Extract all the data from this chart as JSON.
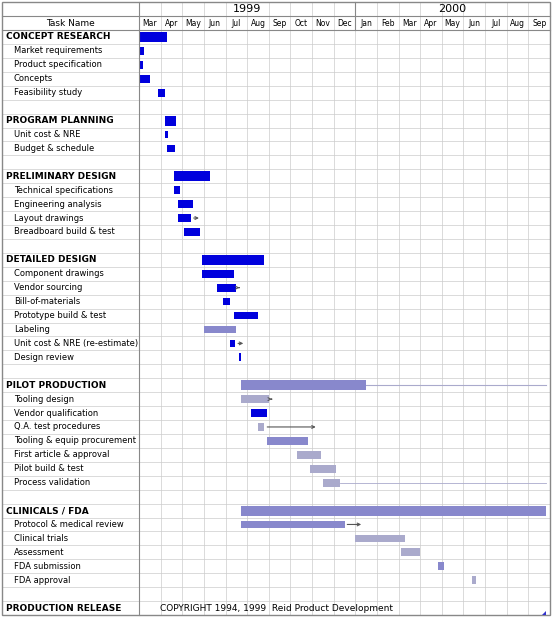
{
  "months": [
    "Mar",
    "Apr",
    "May",
    "Jun",
    "Jul",
    "Aug",
    "Sep",
    "Oct",
    "Nov",
    "Dec",
    "Jan",
    "Feb",
    "Mar",
    "Apr",
    "May",
    "Jun",
    "Jul",
    "Aug",
    "Sep"
  ],
  "year1_label": "1999",
  "year1_cols": 10,
  "year2_label": "2000",
  "year2_cols": 9,
  "tasks": [
    {
      "name": "CONCEPT RESEARCH",
      "indent": 0,
      "bars": [
        {
          "s": 0.0,
          "e": 1.3,
          "c": "#0000dd",
          "lw": null
        }
      ]
    },
    {
      "name": "Market requirements",
      "indent": 1,
      "bars": [
        {
          "s": 0.0,
          "e": 0.25,
          "c": "#0000dd",
          "lw": null
        }
      ]
    },
    {
      "name": "Product specification",
      "indent": 1,
      "bars": [
        {
          "s": 0.0,
          "e": 0.2,
          "c": "#0000dd",
          "lw": null
        }
      ]
    },
    {
      "name": "Concepts",
      "indent": 1,
      "bars": [
        {
          "s": 0.0,
          "e": 0.5,
          "c": "#0000dd",
          "lw": null
        }
      ]
    },
    {
      "name": "Feasibility study",
      "indent": 1,
      "bars": [
        {
          "s": 0.9,
          "e": 1.2,
          "c": "#0000dd",
          "lw": null
        }
      ]
    },
    {
      "name": "",
      "indent": 0,
      "bars": []
    },
    {
      "name": "PROGRAM PLANNING",
      "indent": 0,
      "bars": [
        {
          "s": 1.2,
          "e": 1.7,
          "c": "#0000dd",
          "lw": null
        }
      ]
    },
    {
      "name": "Unit cost & NRE",
      "indent": 1,
      "bars": [
        {
          "s": 1.2,
          "e": 1.35,
          "c": "#0000dd",
          "lw": null
        }
      ]
    },
    {
      "name": "Budget & schedule",
      "indent": 1,
      "bars": [
        {
          "s": 1.3,
          "e": 1.65,
          "c": "#0000dd",
          "lw": null
        }
      ]
    },
    {
      "name": "",
      "indent": 0,
      "bars": []
    },
    {
      "name": "PRELIMINARY DESIGN",
      "indent": 0,
      "bars": [
        {
          "s": 1.6,
          "e": 3.3,
          "c": "#0000dd",
          "lw": null
        }
      ]
    },
    {
      "name": "Technical specifications",
      "indent": 1,
      "bars": [
        {
          "s": 1.6,
          "e": 1.9,
          "c": "#0000dd",
          "lw": null
        }
      ]
    },
    {
      "name": "Engineering analysis",
      "indent": 1,
      "bars": [
        {
          "s": 1.8,
          "e": 2.5,
          "c": "#0000dd",
          "lw": null
        }
      ]
    },
    {
      "name": "Layout drawings",
      "indent": 1,
      "bars": [
        {
          "s": 1.8,
          "e": 2.4,
          "c": "#0000dd",
          "lw": null
        },
        {
          "s": 2.4,
          "e": 2.9,
          "c": "#888888",
          "lw": 0.8,
          "arrow": true
        }
      ]
    },
    {
      "name": "Breadboard build & test",
      "indent": 1,
      "bars": [
        {
          "s": 2.1,
          "e": 2.8,
          "c": "#0000dd",
          "lw": null
        }
      ]
    },
    {
      "name": "",
      "indent": 0,
      "bars": []
    },
    {
      "name": "DETAILED DESIGN",
      "indent": 0,
      "bars": [
        {
          "s": 2.9,
          "e": 5.8,
          "c": "#0000dd",
          "lw": null
        }
      ]
    },
    {
      "name": "Component drawings",
      "indent": 1,
      "bars": [
        {
          "s": 2.9,
          "e": 4.4,
          "c": "#0000dd",
          "lw": null
        }
      ]
    },
    {
      "name": "Vendor sourcing",
      "indent": 1,
      "bars": [
        {
          "s": 3.6,
          "e": 4.5,
          "c": "#0000dd",
          "lw": null
        },
        {
          "s": 4.5,
          "e": 4.65,
          "c": "#888888",
          "lw": 0.8,
          "arrow": true
        }
      ]
    },
    {
      "name": "Bill-of-materials",
      "indent": 1,
      "bars": [
        {
          "s": 3.9,
          "e": 4.2,
          "c": "#0000dd",
          "lw": null
        }
      ]
    },
    {
      "name": "Prototype build & test",
      "indent": 1,
      "bars": [
        {
          "s": 4.4,
          "e": 5.5,
          "c": "#0000dd",
          "lw": null
        }
      ]
    },
    {
      "name": "Labeling",
      "indent": 1,
      "bars": [
        {
          "s": 3.0,
          "e": 4.5,
          "c": "#8888cc",
          "lw": null
        }
      ]
    },
    {
      "name": "Unit cost & NRE (re-estimate)",
      "indent": 1,
      "bars": [
        {
          "s": 4.2,
          "e": 4.45,
          "c": "#0000dd",
          "lw": null
        },
        {
          "s": 4.45,
          "e": 4.95,
          "c": "#888888",
          "lw": 0.8,
          "arrow": true
        }
      ]
    },
    {
      "name": "Design review",
      "indent": 1,
      "bars": [
        {
          "s": 4.6,
          "e": 4.72,
          "c": "#0000dd",
          "lw": null
        }
      ]
    },
    {
      "name": "",
      "indent": 0,
      "bars": []
    },
    {
      "name": "PILOT PRODUCTION",
      "indent": 0,
      "bars": [
        {
          "s": 4.7,
          "e": 10.5,
          "c": "#8888cc",
          "lw": null
        },
        {
          "s": 10.5,
          "e": 18.8,
          "c": "#aaaacc",
          "lw": 0.8,
          "line": true
        }
      ]
    },
    {
      "name": "Tooling design",
      "indent": 1,
      "bars": [
        {
          "s": 4.7,
          "e": 6.0,
          "c": "#aaaacc",
          "lw": null
        },
        {
          "s": 6.0,
          "e": 6.15,
          "c": "#888888",
          "lw": 0.8,
          "arrow": true
        }
      ]
    },
    {
      "name": "Vendor qualification",
      "indent": 1,
      "bars": [
        {
          "s": 5.2,
          "e": 5.9,
          "c": "#0000dd",
          "lw": null
        }
      ]
    },
    {
      "name": "Q.A. test procedures",
      "indent": 1,
      "bars": [
        {
          "s": 5.5,
          "e": 5.8,
          "c": "#aaaacc",
          "lw": null
        },
        {
          "s": 5.8,
          "e": 8.3,
          "c": "#888888",
          "lw": 0.8,
          "arrow": true
        }
      ]
    },
    {
      "name": "Tooling & equip procurement",
      "indent": 1,
      "bars": [
        {
          "s": 5.9,
          "e": 7.8,
          "c": "#8888cc",
          "lw": null
        }
      ]
    },
    {
      "name": "First article & approval",
      "indent": 1,
      "bars": [
        {
          "s": 7.3,
          "e": 8.4,
          "c": "#aaaacc",
          "lw": null
        }
      ]
    },
    {
      "name": "Pilot build & test",
      "indent": 1,
      "bars": [
        {
          "s": 7.9,
          "e": 9.1,
          "c": "#aaaacc",
          "lw": null
        }
      ]
    },
    {
      "name": "Process validation",
      "indent": 1,
      "bars": [
        {
          "s": 8.5,
          "e": 9.3,
          "c": "#aaaacc",
          "lw": null
        },
        {
          "s": 9.3,
          "e": 18.8,
          "c": "#aaaacc",
          "lw": 0.6,
          "line": true
        }
      ]
    },
    {
      "name": "",
      "indent": 0,
      "bars": []
    },
    {
      "name": "CLINICALS / FDA",
      "indent": 0,
      "bars": [
        {
          "s": 4.7,
          "e": 18.8,
          "c": "#8888cc",
          "lw": null
        }
      ]
    },
    {
      "name": "Protocol & medical review",
      "indent": 1,
      "bars": [
        {
          "s": 4.7,
          "e": 9.5,
          "c": "#8888cc",
          "lw": null
        },
        {
          "s": 9.5,
          "e": 10.4,
          "c": "#888888",
          "lw": 0.8,
          "arrow": true
        }
      ]
    },
    {
      "name": "Clinical trials",
      "indent": 1,
      "bars": [
        {
          "s": 10.0,
          "e": 12.3,
          "c": "#aaaacc",
          "lw": null
        }
      ]
    },
    {
      "name": "Assessment",
      "indent": 1,
      "bars": [
        {
          "s": 12.1,
          "e": 13.0,
          "c": "#aaaacc",
          "lw": null
        }
      ]
    },
    {
      "name": "FDA submission",
      "indent": 1,
      "bars": [
        {
          "s": 13.8,
          "e": 14.1,
          "c": "#8888cc",
          "lw": null
        }
      ]
    },
    {
      "name": "FDA approval",
      "indent": 1,
      "bars": [
        {
          "s": 15.4,
          "e": 15.6,
          "c": "#aaaacc",
          "lw": null
        }
      ]
    },
    {
      "name": "",
      "indent": 0,
      "bars": []
    },
    {
      "name": "PRODUCTION RELEASE",
      "indent": 0,
      "bars": []
    }
  ],
  "copyright": "COPYRIGHT 1994, 1999  Reid Product Development",
  "bg_color": "#ffffff",
  "border_color": "#888888",
  "grid_color": "#cccccc",
  "text_color": "#000000"
}
